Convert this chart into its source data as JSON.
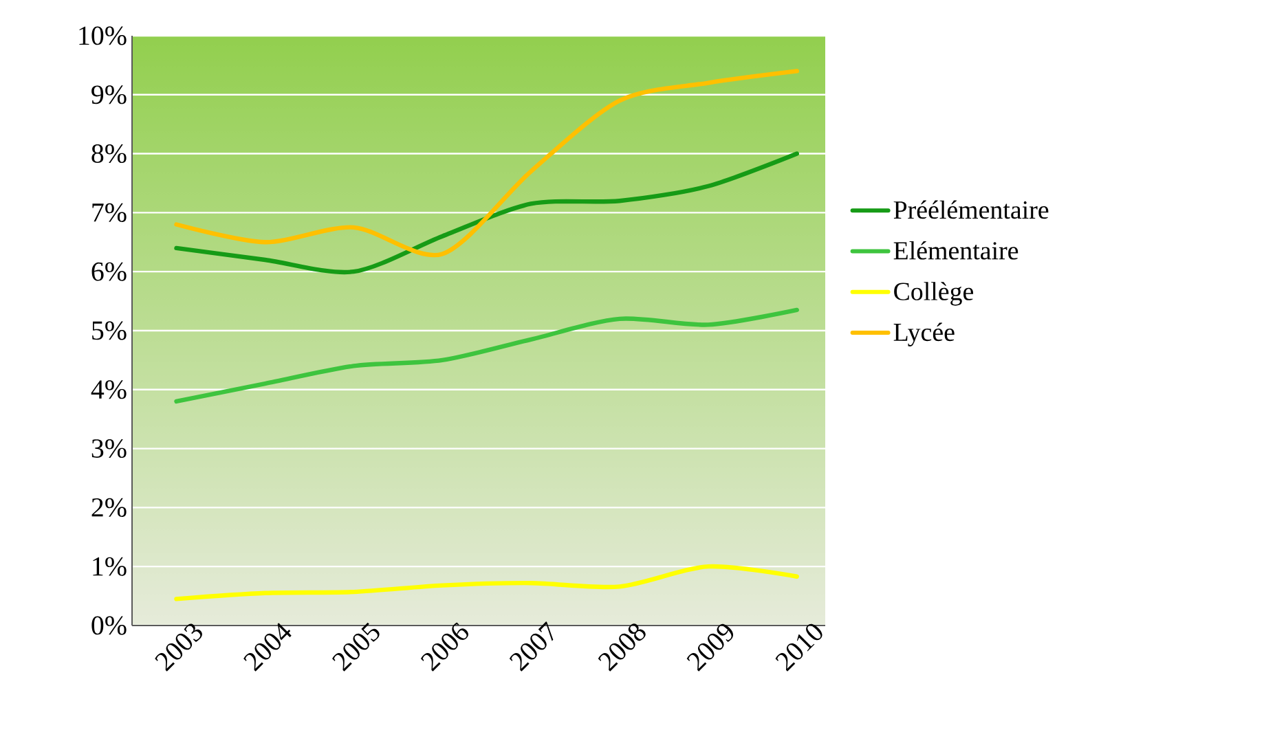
{
  "chart_data": {
    "type": "line",
    "categories": [
      "2003",
      "2004",
      "2005",
      "2006",
      "2007",
      "2008",
      "2009",
      "2010"
    ],
    "series": [
      {
        "name": "Préélémentaire",
        "color": "#169b16",
        "values": [
          6.4,
          6.2,
          6.0,
          6.6,
          7.15,
          7.2,
          7.45,
          8.0
        ]
      },
      {
        "name": "Elémentaire",
        "color": "#3ec43e",
        "values": [
          3.8,
          4.1,
          4.4,
          4.5,
          4.85,
          5.2,
          5.1,
          5.35
        ]
      },
      {
        "name": "Collège",
        "color": "#ffff00",
        "values": [
          0.45,
          0.55,
          0.57,
          0.68,
          0.72,
          0.66,
          1.0,
          0.83
        ]
      },
      {
        "name": "Lycée",
        "color": "#ffc000",
        "values": [
          6.8,
          6.5,
          6.75,
          6.3,
          7.7,
          8.9,
          9.2,
          9.4
        ]
      }
    ],
    "ylim": [
      0,
      10
    ],
    "yticks": [
      {
        "value": 0,
        "label": "0%"
      },
      {
        "value": 1,
        "label": "1%"
      },
      {
        "value": 2,
        "label": "2%"
      },
      {
        "value": 3,
        "label": "3%"
      },
      {
        "value": 4,
        "label": "4%"
      },
      {
        "value": 5,
        "label": "5%"
      },
      {
        "value": 6,
        "label": "6%"
      },
      {
        "value": 7,
        "label": "7%"
      },
      {
        "value": 8,
        "label": "8%"
      },
      {
        "value": 9,
        "label": "9%"
      },
      {
        "value": 10,
        "label": "10%"
      }
    ],
    "grid": "y",
    "legend": "right"
  }
}
